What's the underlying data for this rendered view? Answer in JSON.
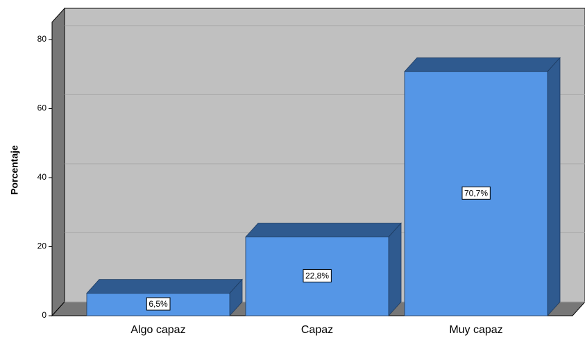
{
  "chart_data": {
    "type": "bar3d",
    "y_label": "Porcentaje",
    "categories": [
      "Algo capaz",
      "Capaz",
      "Muy capaz"
    ],
    "values": [
      6.5,
      22.8,
      70.7
    ],
    "value_labels": [
      "6,5%",
      "22,8%",
      "70,7%"
    ],
    "color": "#5596e6",
    "shade_color": "#2f5a8f",
    "ylim": [
      0,
      85
    ],
    "yticks": [
      0,
      20,
      40,
      60,
      80
    ],
    "grid": true
  }
}
